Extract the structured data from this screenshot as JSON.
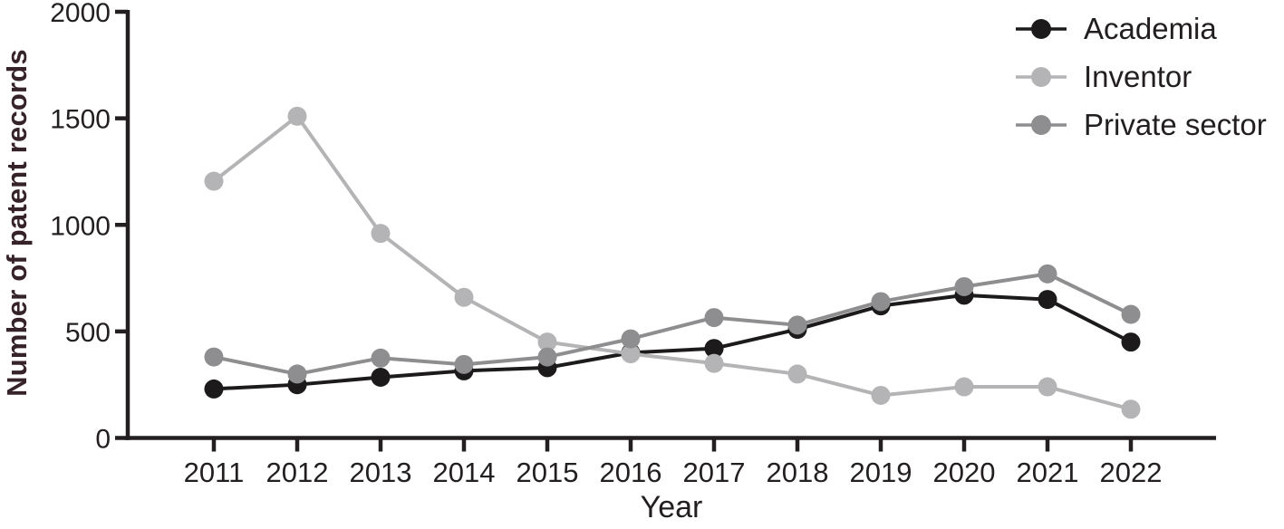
{
  "chart_data": {
    "type": "line",
    "title": "",
    "xlabel": "Year",
    "ylabel": "Number of patent records",
    "categories": [
      2011,
      2012,
      2013,
      2014,
      2015,
      2016,
      2017,
      2018,
      2019,
      2020,
      2021,
      2022
    ],
    "series": [
      {
        "name": "Academia",
        "color": "#1c1a1b",
        "values": [
          230,
          250,
          285,
          315,
          330,
          400,
          420,
          510,
          620,
          670,
          650,
          450
        ]
      },
      {
        "name": "Inventor",
        "color": "#b4b4b6",
        "values": [
          1205,
          1510,
          960,
          660,
          450,
          395,
          350,
          300,
          200,
          240,
          240,
          135
        ]
      },
      {
        "name": "Private sector",
        "color": "#8e8e90",
        "values": [
          380,
          300,
          375,
          345,
          380,
          465,
          565,
          530,
          640,
          710,
          770,
          580
        ]
      }
    ],
    "ylim": [
      0,
      2000
    ],
    "yticks": [
      0,
      500,
      1000,
      1500,
      2000
    ],
    "grid": false,
    "legend_position": "top-right",
    "axis_color": "#231f20",
    "tick_label_color": "#231f20",
    "background": "#ffffff"
  }
}
